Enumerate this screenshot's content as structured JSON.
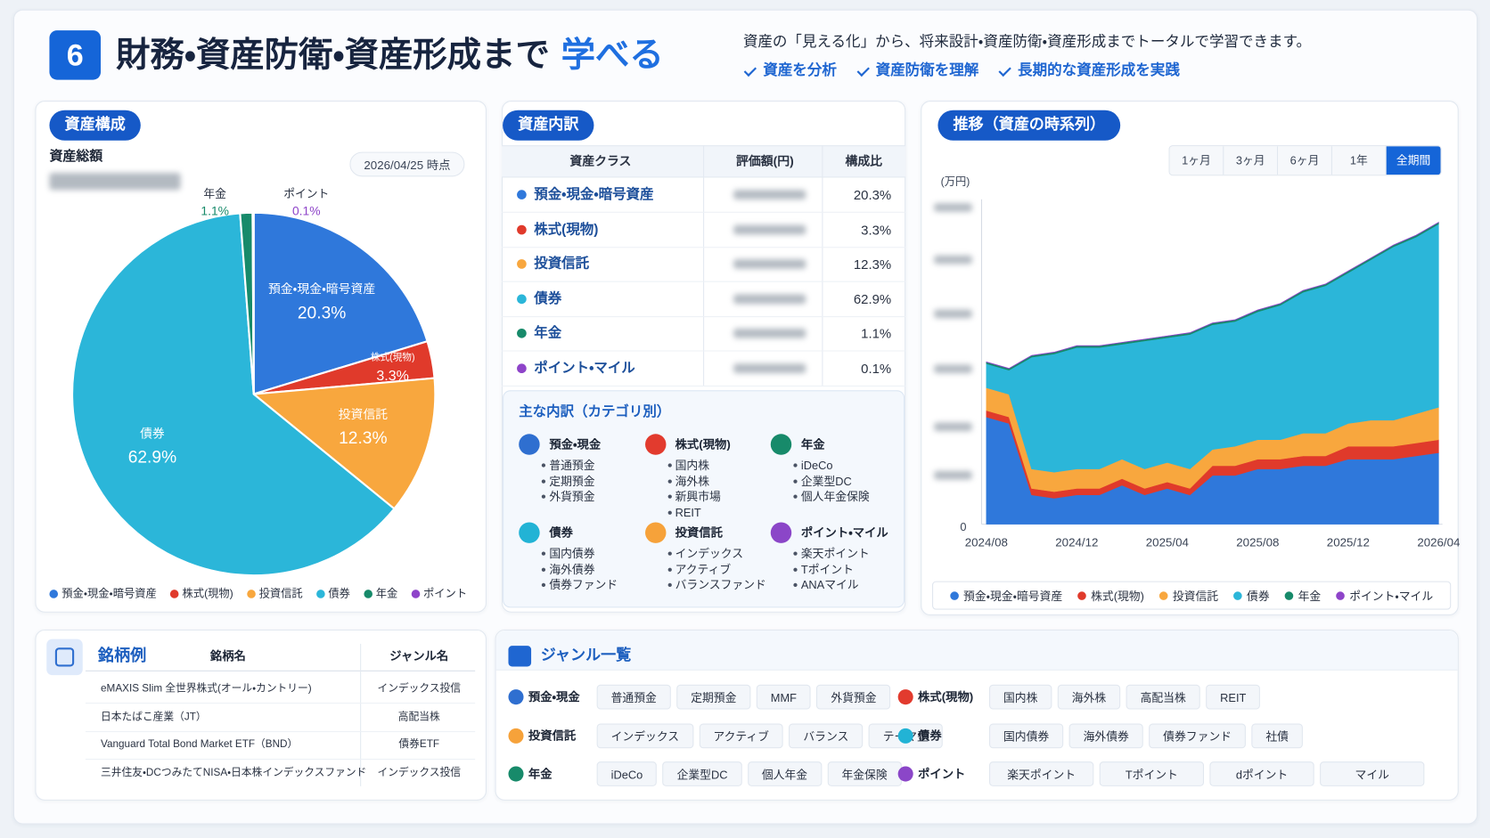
{
  "header": {
    "number": "6",
    "title": "財務・資産防衛・資産形成まで",
    "title_accent": "学べる",
    "description": "資産の「見える化」から、将来設計・資産防衛・資産形成までトータルで学習できます。",
    "highlights": [
      "資産を分析",
      "資産防衛を理解",
      "長期的な資産形成を実践"
    ]
  },
  "composition": {
    "title": "資産構成",
    "total_label": "資産総額",
    "as_of": "2026/04/25 時点",
    "chart": {
      "type": "pie",
      "categories": [
        "預金・現金・暗号資産",
        "株式(現物)",
        "投資信託",
        "債券",
        "年金",
        "ポイント"
      ],
      "values": [
        20.3,
        3.3,
        12.3,
        62.9,
        1.1,
        0.1
      ],
      "value_labels": [
        "20.3%",
        "3.3%",
        "12.3%",
        "62.9%",
        "1.1%",
        "0.1%"
      ],
      "colors": [
        "#2f78db",
        "#e03a2b",
        "#f8a73e",
        "#2bb6d9",
        "#178a6a",
        "#8e44c9"
      ]
    }
  },
  "breakdown": {
    "title": "資産内訳",
    "columns": [
      "資産クラス",
      "評価額(円)",
      "構成比"
    ],
    "rows": [
      "預金・現金・暗号資産",
      "株式(現物)",
      "投資信託",
      "債券",
      "年金",
      "ポイント・マイル"
    ]
  },
  "category_details": {
    "title": "主な内訳（カテゴリ別）",
    "groups": [
      {
        "name": "預金・現金",
        "color": "#2f6fd0",
        "items": [
          "普通預金",
          "定期預金",
          "外貨預金"
        ]
      },
      {
        "name": "株式(現物)",
        "color": "#e23b2e",
        "items": [
          "国内株",
          "海外株",
          "新興市場",
          "REIT"
        ]
      },
      {
        "name": "年金",
        "color": "#178a6a",
        "items": [
          "iDeCo",
          "企業型DC",
          "個人年金保険"
        ]
      },
      {
        "name": "債券",
        "color": "#22b3d5",
        "items": [
          "国内債券",
          "海外債券",
          "債券ファンド"
        ]
      },
      {
        "name": "投資信託",
        "color": "#f6a23a",
        "items": [
          "インデックス",
          "アクティブ",
          "バランスファンド"
        ]
      },
      {
        "name": "ポイント・マイル",
        "color": "#8b46c8",
        "items": [
          "楽天ポイント",
          "Tポイント",
          "ANAマイル"
        ]
      }
    ]
  },
  "trend": {
    "title": "推移（資産の時系列）",
    "ranges": [
      "1ヶ月",
      "3ヶ月",
      "6ヶ月",
      "1年",
      "全期間"
    ],
    "active_range": 4,
    "unit": "(万円)",
    "chart": {
      "type": "area",
      "stacked": true,
      "categories": [
        "2024/08",
        null,
        null,
        null,
        "2024/12",
        null,
        null,
        null,
        "2025/04",
        null,
        null,
        null,
        "2025/08",
        null,
        null,
        null,
        "2025/12",
        null,
        null,
        null,
        "2026/04"
      ],
      "series": [
        {
          "name": "預金・現金・暗号資産",
          "color": "#2f78db",
          "values": [
            33,
            31,
            9,
            8,
            9,
            9,
            12,
            9,
            11,
            9,
            15,
            15,
            17,
            17,
            18,
            18,
            20,
            20,
            20,
            21,
            22
          ]
        },
        {
          "name": "株式(現物)",
          "color": "#e03a2b",
          "values": [
            2,
            2,
            2,
            2,
            2,
            2,
            2,
            2,
            2,
            2,
            3,
            3,
            3,
            3,
            3,
            3,
            4,
            4,
            4,
            4,
            4
          ]
        },
        {
          "name": "投資信託",
          "color": "#f8a73e",
          "values": [
            7,
            7,
            6,
            6,
            6,
            6,
            6,
            6,
            6,
            6,
            5,
            6,
            6,
            6,
            7,
            7,
            7,
            8,
            8,
            9,
            10
          ]
        },
        {
          "name": "債券",
          "color": "#2bb6d9",
          "values": [
            7.4,
            7.4,
            34.4,
            36.4,
            37.4,
            37.4,
            35.4,
            39.4,
            38.4,
            41.4,
            38.4,
            38.4,
            39.4,
            41.4,
            43.4,
            45.4,
            46.4,
            49.4,
            53.4,
            54.4,
            56.4
          ]
        },
        {
          "name": "年金",
          "color": "#178a6a",
          "values": [
            0.5,
            0.5,
            0.5,
            0.5,
            0.5,
            0.5,
            0.5,
            0.5,
            0.5,
            0.5,
            0.5,
            0.5,
            0.5,
            0.5,
            0.5,
            0.5,
            0.5,
            0.5,
            0.5,
            0.5,
            0.5
          ]
        },
        {
          "name": "ポイント・マイル",
          "color": "#8e44c9",
          "values": [
            0.1,
            0.1,
            0.1,
            0.1,
            0.1,
            0.1,
            0.1,
            0.1,
            0.1,
            0.1,
            0.1,
            0.1,
            0.1,
            0.1,
            0.1,
            0.1,
            0.1,
            0.1,
            0.1,
            0.1,
            0.1
          ]
        }
      ],
      "ylim": [
        0,
        100
      ],
      "yticks": [
        0
      ]
    }
  },
  "brands": {
    "title": "銘柄例",
    "columns": [
      "銘柄名",
      "ジャンル名"
    ],
    "rows": [
      [
        "eMAXIS Slim 全世界株式(オール・カントリー)",
        "インデックス投信"
      ],
      [
        "日本たばこ産業（JT）",
        "高配当株"
      ],
      [
        "Vanguard Total Bond Market ETF（BND）",
        "債券ETF"
      ],
      [
        "三井住友・DCつみたてNISA・日本株インデックスファンド",
        "インデックス投信"
      ]
    ]
  },
  "genres": {
    "title": "ジャンル一覧",
    "groups": [
      {
        "name": "預金・現金",
        "color": "#2f6fd0",
        "tags": [
          "普通預金",
          "定期預金",
          "MMF",
          "外貨預金"
        ]
      },
      {
        "name": "株式(現物)",
        "color": "#e23b2e",
        "tags": [
          "国内株",
          "海外株",
          "高配当株",
          "REIT"
        ]
      },
      {
        "name": "投資信託",
        "color": "#f6a23a",
        "tags": [
          "インデックス",
          "アクティブ",
          "バランス",
          "テーマ型"
        ]
      },
      {
        "name": "債券",
        "color": "#22b3d5",
        "tags": [
          "国内債券",
          "海外債券",
          "債券ファンド",
          "社債"
        ]
      },
      {
        "name": "年金",
        "color": "#178a6a",
        "tags": [
          "iDeCo",
          "企業型DC",
          "個人年金",
          "年金保険"
        ]
      },
      {
        "name": "ポイント",
        "color": "#8b46c8",
        "tags": [
          "楽天ポイント",
          "Tポイント",
          "dポイント",
          "マイル"
        ]
      }
    ]
  }
}
